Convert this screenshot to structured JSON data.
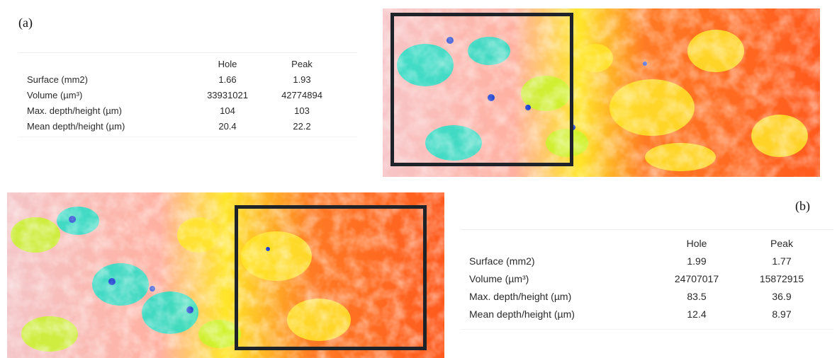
{
  "panel_a": {
    "label": "(a)",
    "columns": [
      "Hole",
      "Peak"
    ],
    "rows": [
      {
        "label": "Surface (mm2)",
        "hole": "1.66",
        "peak": "1.93"
      },
      {
        "label": "Volume (µm³)",
        "hole": "33931021",
        "peak": "42774894"
      },
      {
        "label": "Max. depth/height (µm)",
        "hole": "104",
        "peak": "103"
      },
      {
        "label": "Mean depth/height (µm)",
        "hole": "20.4",
        "peak": "22.2"
      }
    ]
  },
  "panel_b": {
    "label": "(b)",
    "columns": [
      "Hole",
      "Peak"
    ],
    "rows": [
      {
        "label": "Surface (mm2)",
        "hole": "1.99",
        "peak": "1.77"
      },
      {
        "label": "Volume (µm³)",
        "hole": "24707017",
        "peak": "15872915"
      },
      {
        "label": "Max. depth/height (µm)",
        "hole": "83.5",
        "peak": "36.9"
      },
      {
        "label": "Mean depth/height (µm)",
        "hole": "12.4",
        "peak": "8.97"
      }
    ]
  },
  "colors": {
    "base": "#ff5a1e",
    "red_contour": "#e8462a",
    "pink": "#f2c9c9",
    "yellow": "#ffe62a",
    "yellow_green": "#c8f52a",
    "cyan": "#22e0c8",
    "blue": "#1a3fd0",
    "roi_border": "#1d2329"
  }
}
